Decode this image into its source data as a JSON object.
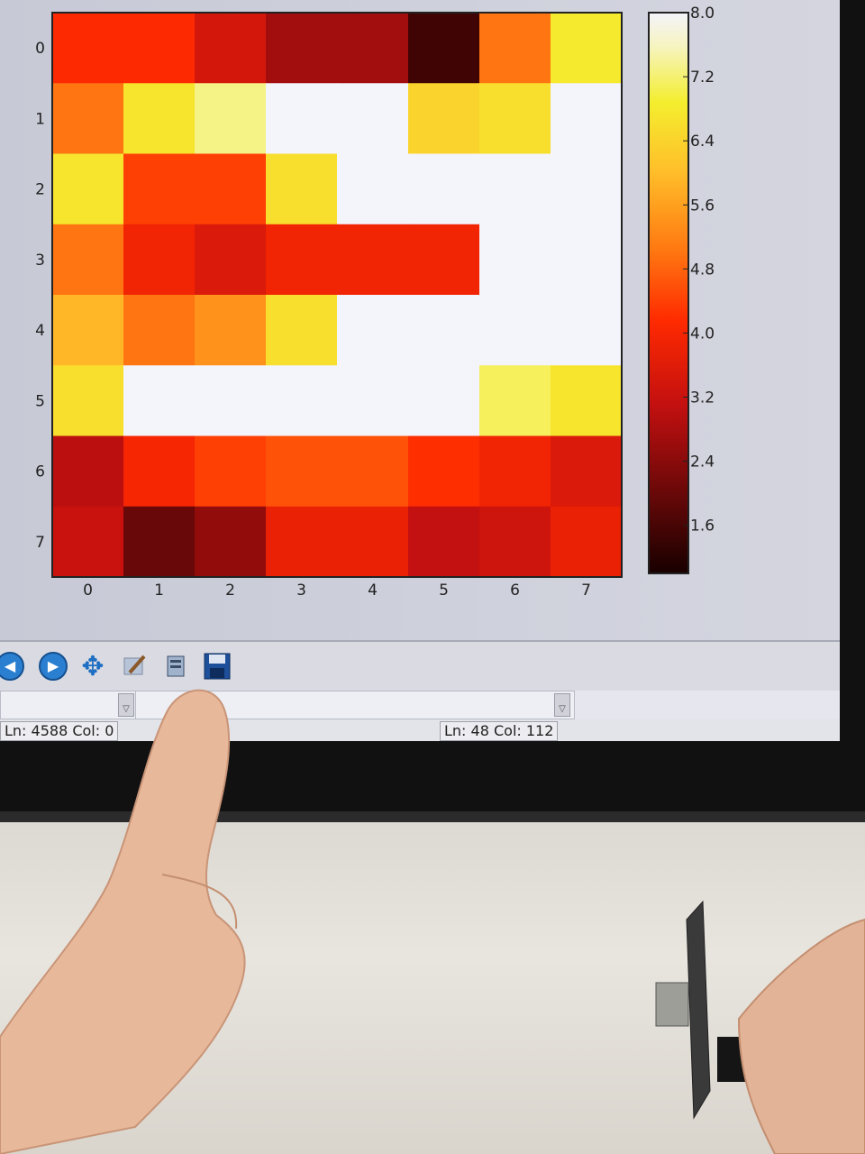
{
  "chart_data": {
    "type": "heatmap",
    "title": "",
    "xlabel": "",
    "ylabel": "",
    "colormap": "hot",
    "x_tick_labels": [
      "0",
      "1",
      "2",
      "3",
      "4",
      "5",
      "6",
      "7"
    ],
    "y_tick_labels": [
      "0",
      "1",
      "2",
      "3",
      "4",
      "5",
      "6",
      "7"
    ],
    "values": [
      [
        4.1,
        4.1,
        3.4,
        2.7,
        2.7,
        1.5,
        5.0,
        6.8
      ],
      [
        5.0,
        6.7,
        7.3,
        8.0,
        8.0,
        6.4,
        6.6,
        8.0
      ],
      [
        6.7,
        4.4,
        4.4,
        6.6,
        8.0,
        8.0,
        8.0,
        8.0
      ],
      [
        5.0,
        3.9,
        3.5,
        3.9,
        3.9,
        3.9,
        8.0,
        8.0
      ],
      [
        5.9,
        5.0,
        5.4,
        6.6,
        8.0,
        8.0,
        8.0,
        8.0
      ],
      [
        6.6,
        8.0,
        8.0,
        8.0,
        8.0,
        8.0,
        7.1,
        6.7
      ],
      [
        3.0,
        4.0,
        4.4,
        4.6,
        4.6,
        4.2,
        3.9,
        3.5
      ],
      [
        3.2,
        2.0,
        2.5,
        3.8,
        3.8,
        3.1,
        3.3,
        3.8
      ]
    ],
    "colorbar": {
      "min": 1.0,
      "max": 8.0,
      "tick_labels": [
        "8.0",
        "7.2",
        "6.4",
        "5.6",
        "4.8",
        "4.0",
        "3.2",
        "2.4",
        "1.6"
      ]
    }
  },
  "toolbar": {
    "icons": [
      "back-arrow-icon",
      "forward-arrow-icon",
      "pan-move-icon",
      "edit-icon",
      "configure-icon",
      "save-disk-icon"
    ],
    "back_glyph": "◀",
    "forward_glyph": "▶",
    "pan_glyph": "✥"
  },
  "status": {
    "left": "Ln: 4588 Col: 0",
    "right": "Ln: 48 Col: 112"
  }
}
